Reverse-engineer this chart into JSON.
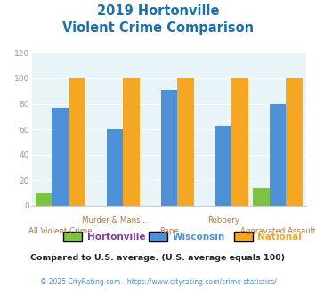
{
  "title_line1": "2019 Hortonville",
  "title_line2": "Violent Crime Comparison",
  "categories": [
    "All Violent Crime",
    "Murder & Mans...",
    "Rape",
    "Robbery",
    "Aggravated Assault"
  ],
  "hortonville": [
    10,
    0,
    0,
    0,
    14
  ],
  "wisconsin": [
    77,
    60,
    91,
    63,
    80
  ],
  "national": [
    100,
    100,
    100,
    100,
    100
  ],
  "bar_colors": {
    "hortonville": "#7dc242",
    "wisconsin": "#4d90d5",
    "national": "#f5a623"
  },
  "ylim": [
    0,
    120
  ],
  "yticks": [
    0,
    20,
    40,
    60,
    80,
    100,
    120
  ],
  "bg_color": "#e8f4f8",
  "legend_labels": [
    "Hortonville",
    "Wisconsin",
    "National"
  ],
  "legend_text_colors": [
    "#7b3fa0",
    "#4d90d5",
    "#f5a623"
  ],
  "footnote1": "Compared to U.S. average. (U.S. average equals 100)",
  "footnote2": "© 2025 CityRating.com - https://www.cityrating.com/crime-statistics/",
  "title_color": "#1a6faf",
  "footnote1_color": "#222222",
  "footnote2_color": "#4d90d5"
}
